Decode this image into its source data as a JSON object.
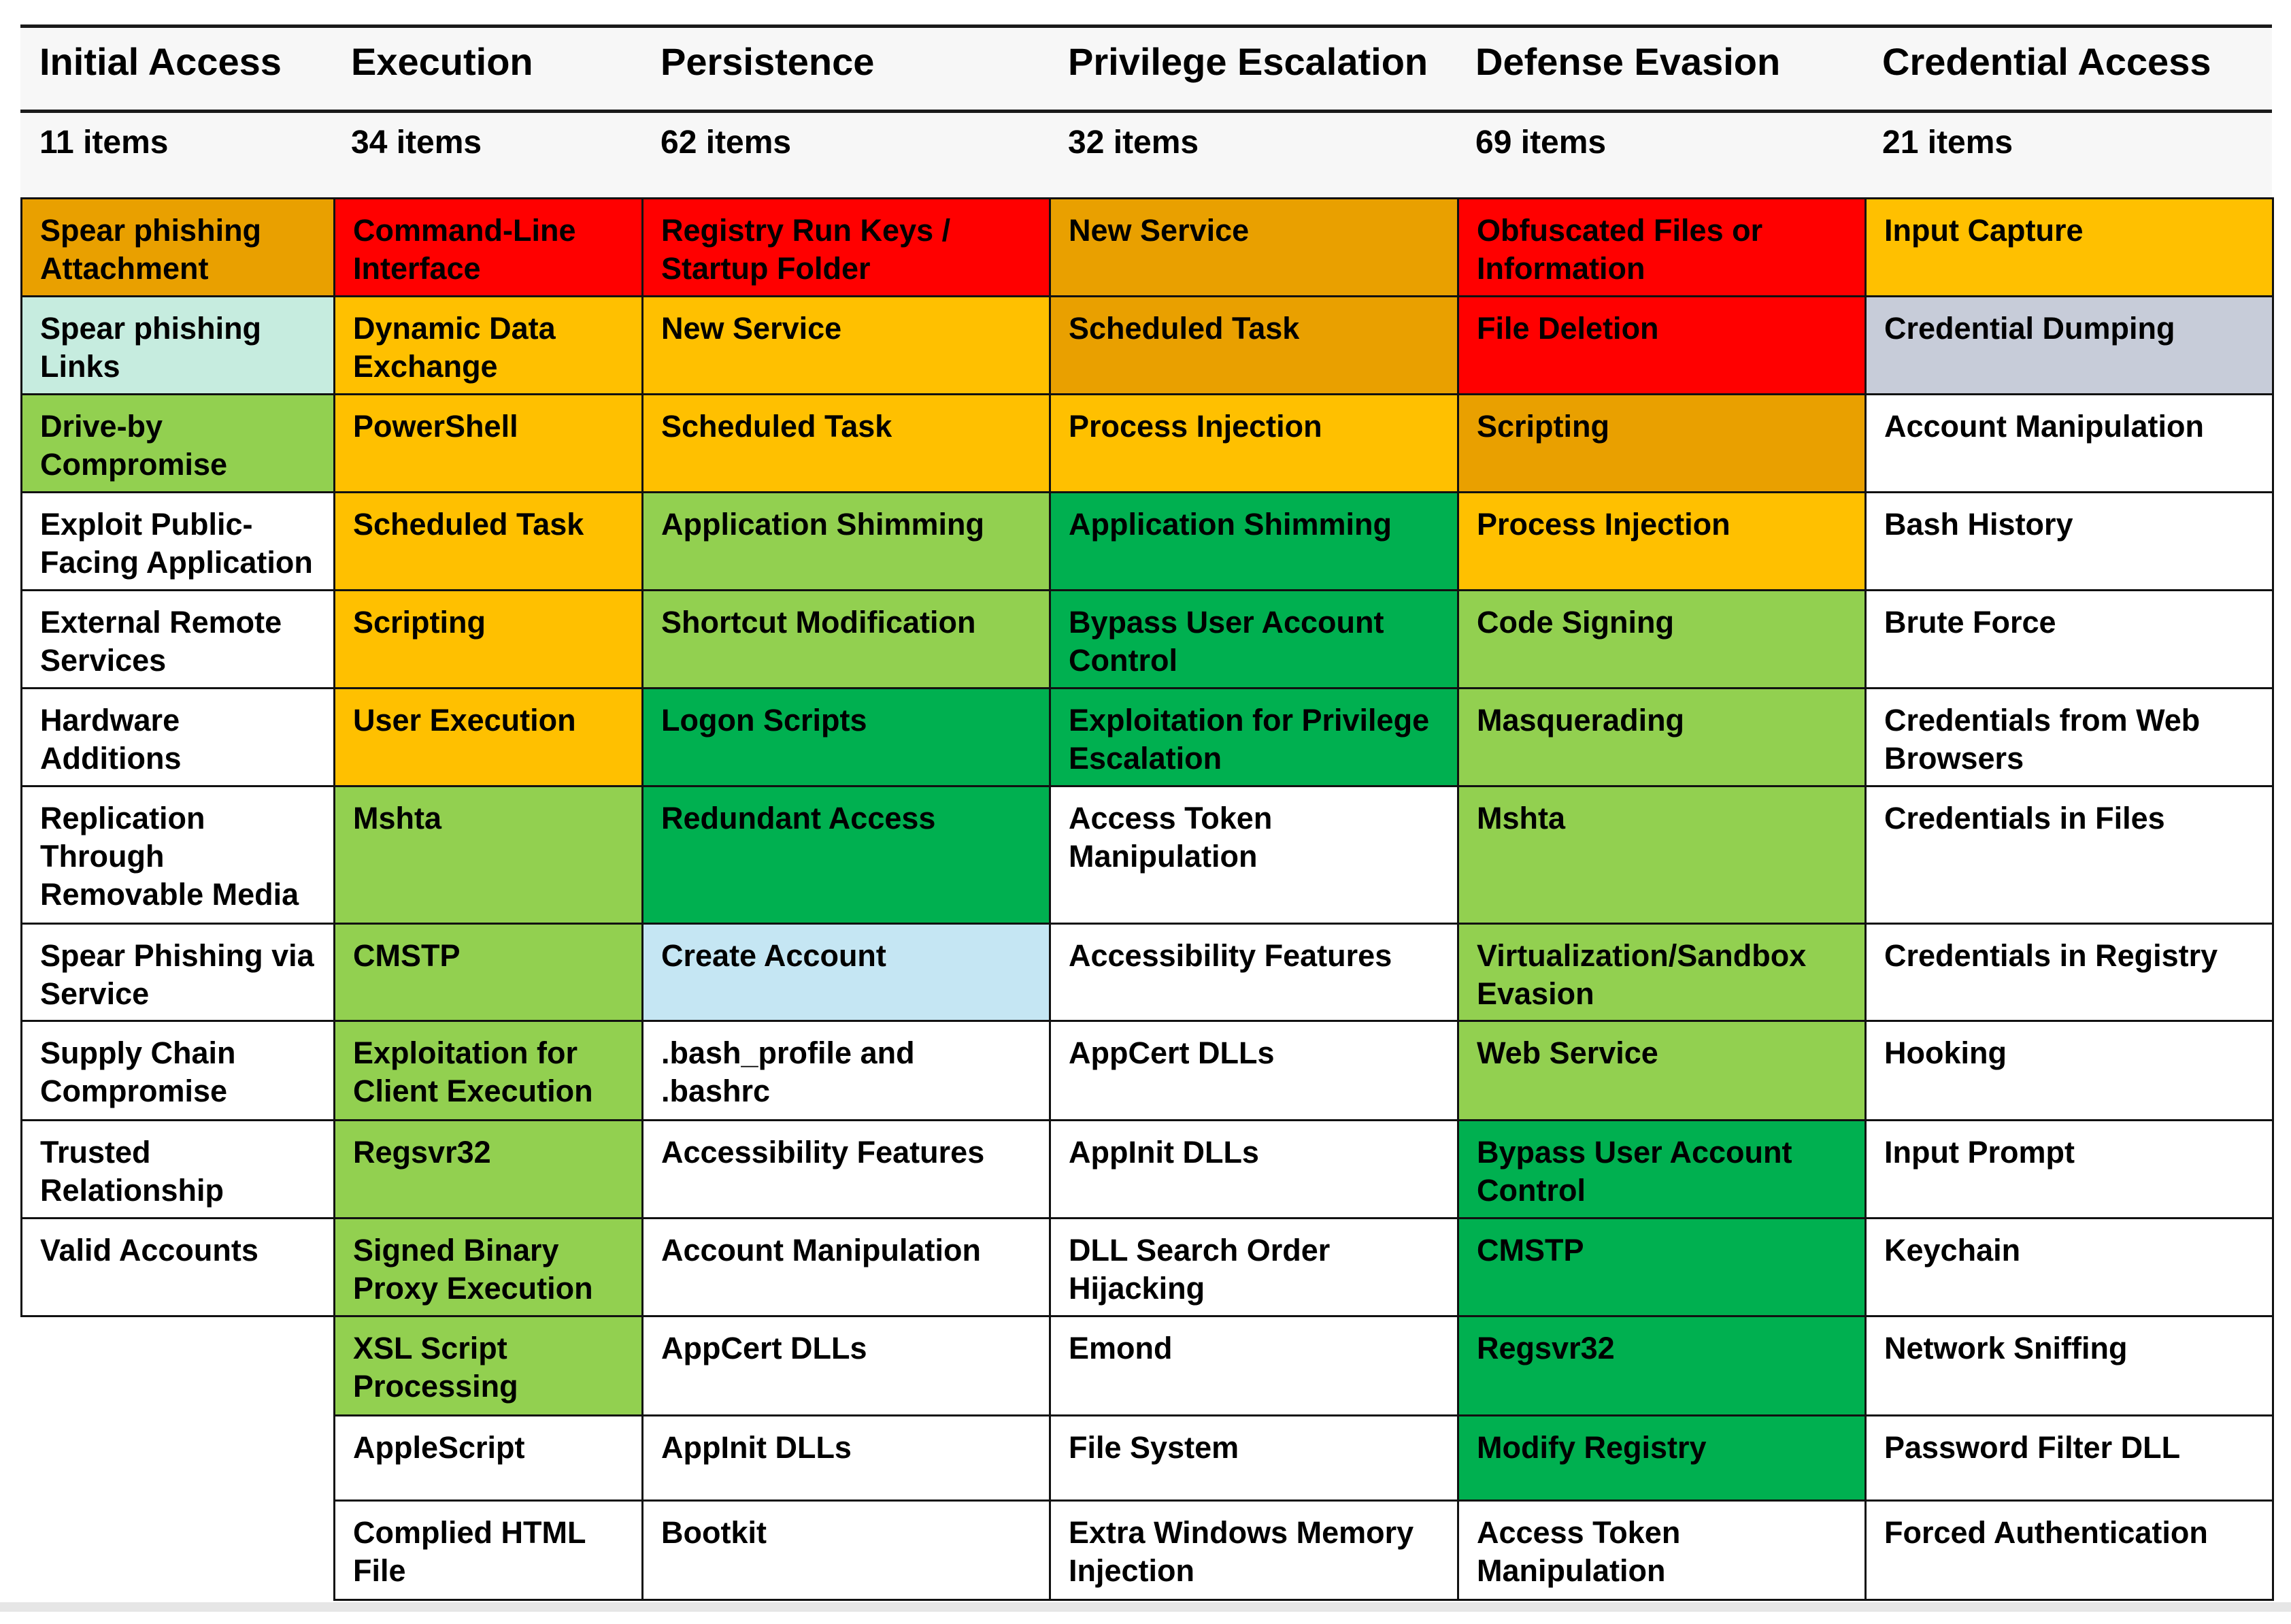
{
  "colors": {
    "red": "#FF0000",
    "dark_orange": "#E9A000",
    "amber": "#FFC000",
    "light_green": "#92D050",
    "green": "#00B050",
    "mint": "#C6ECDF",
    "light_blue": "#C5E6F3",
    "slate": "#C7CCD9",
    "white": "#FFFFFF"
  },
  "columns": [
    {
      "title": "Initial Access",
      "count": "11 items"
    },
    {
      "title": "Execution",
      "count": "34 items"
    },
    {
      "title": "Persistence",
      "count": "62 items"
    },
    {
      "title": "Privilege Escalation",
      "count": "32 items"
    },
    {
      "title": "Defense Evasion",
      "count": "69 items"
    },
    {
      "title": "Credential Access",
      "count": "21 items"
    }
  ],
  "cells": [
    [
      {
        "label": "Spear phishing Attachment",
        "color": "dark_orange"
      },
      {
        "label": "Spear phishing Links",
        "color": "mint"
      },
      {
        "label": "Drive-by Compromise",
        "color": "light_green"
      },
      {
        "label": "Exploit Public-Facing Application",
        "color": "white"
      },
      {
        "label": "External Remote Services",
        "color": "white"
      },
      {
        "label": "Hardware Additions",
        "color": "white"
      },
      {
        "label": "Replication Through Removable Media",
        "color": "white"
      },
      {
        "label": "Spear Phishing via Service",
        "color": "white"
      },
      {
        "label": "Supply Chain Compromise",
        "color": "white"
      },
      {
        "label": "Trusted Relationship",
        "color": "white"
      },
      {
        "label": "Valid Accounts",
        "color": "white"
      }
    ],
    [
      {
        "label": "Command-Line Interface",
        "color": "red"
      },
      {
        "label": "Dynamic Data Exchange",
        "color": "amber"
      },
      {
        "label": "PowerShell",
        "color": "amber"
      },
      {
        "label": "Scheduled Task",
        "color": "amber"
      },
      {
        "label": "Scripting",
        "color": "amber"
      },
      {
        "label": "User Execution",
        "color": "amber"
      },
      {
        "label": "Mshta",
        "color": "light_green"
      },
      {
        "label": "CMSTP",
        "color": "light_green"
      },
      {
        "label": "Exploitation for Client Execution",
        "color": "light_green"
      },
      {
        "label": "Regsvr32",
        "color": "light_green"
      },
      {
        "label": "Signed Binary Proxy Execution",
        "color": "light_green"
      },
      {
        "label": "XSL Script Processing",
        "color": "light_green"
      },
      {
        "label": "AppleScript",
        "color": "white"
      },
      {
        "label": "Complied HTML File",
        "color": "white"
      }
    ],
    [
      {
        "label": "Registry Run Keys / Startup Folder",
        "color": "red"
      },
      {
        "label": "New Service",
        "color": "amber"
      },
      {
        "label": "Scheduled Task",
        "color": "amber"
      },
      {
        "label": "Application Shimming",
        "color": "light_green"
      },
      {
        "label": "Shortcut Modification",
        "color": "light_green"
      },
      {
        "label": "Logon Scripts",
        "color": "green"
      },
      {
        "label": "Redundant Access",
        "color": "green"
      },
      {
        "label": "Create Account",
        "color": "light_blue"
      },
      {
        "label": ".bash_profile and .bashrc",
        "color": "white"
      },
      {
        "label": "Accessibility Features",
        "color": "white"
      },
      {
        "label": "Account Manipulation",
        "color": "white"
      },
      {
        "label": "AppCert DLLs",
        "color": "white"
      },
      {
        "label": "AppInit DLLs",
        "color": "white"
      },
      {
        "label": "Bootkit",
        "color": "white"
      }
    ],
    [
      {
        "label": "New Service",
        "color": "dark_orange"
      },
      {
        "label": "Scheduled Task",
        "color": "dark_orange"
      },
      {
        "label": "Process Injection",
        "color": "amber"
      },
      {
        "label": "Application Shimming",
        "color": "green"
      },
      {
        "label": "Bypass User Account Control",
        "color": "green"
      },
      {
        "label": "Exploitation for Privilege Escalation",
        "color": "green"
      },
      {
        "label": "Access Token Manipulation",
        "color": "white"
      },
      {
        "label": "Accessibility Features",
        "color": "white"
      },
      {
        "label": "AppCert DLLs",
        "color": "white"
      },
      {
        "label": "AppInit DLLs",
        "color": "white"
      },
      {
        "label": "DLL Search Order Hijacking",
        "color": "white"
      },
      {
        "label": "Emond",
        "color": "white"
      },
      {
        "label": "File System",
        "color": "white"
      },
      {
        "label": "Extra Windows Memory Injection",
        "color": "white"
      }
    ],
    [
      {
        "label": "Obfuscated Files or Information",
        "color": "red"
      },
      {
        "label": "File Deletion",
        "color": "red"
      },
      {
        "label": "Scripting",
        "color": "dark_orange"
      },
      {
        "label": "Process Injection",
        "color": "amber"
      },
      {
        "label": "Code Signing",
        "color": "light_green"
      },
      {
        "label": "Masquerading",
        "color": "light_green"
      },
      {
        "label": "Mshta",
        "color": "light_green"
      },
      {
        "label": "Virtualization/Sandbox Evasion",
        "color": "light_green"
      },
      {
        "label": "Web Service",
        "color": "light_green"
      },
      {
        "label": "Bypass User Account Control",
        "color": "green"
      },
      {
        "label": "CMSTP",
        "color": "green"
      },
      {
        "label": "Regsvr32",
        "color": "green"
      },
      {
        "label": "Modify Registry",
        "color": "green"
      },
      {
        "label": "Access Token Manipulation",
        "color": "white"
      }
    ],
    [
      {
        "label": "Input Capture",
        "color": "amber"
      },
      {
        "label": "Credential Dumping",
        "color": "slate"
      },
      {
        "label": "Account Manipulation",
        "color": "white"
      },
      {
        "label": "Bash History",
        "color": "white"
      },
      {
        "label": "Brute Force",
        "color": "white"
      },
      {
        "label": "Credentials from Web Browsers",
        "color": "white"
      },
      {
        "label": "Credentials in Files",
        "color": "white"
      },
      {
        "label": "Credentials in Registry",
        "color": "white"
      },
      {
        "label": "Hooking",
        "color": "white"
      },
      {
        "label": "Input Prompt",
        "color": "white"
      },
      {
        "label": "Keychain",
        "color": "white"
      },
      {
        "label": "Network Sniffing",
        "color": "white"
      },
      {
        "label": "Password Filter DLL",
        "color": "white"
      },
      {
        "label": "Forced Authentication",
        "color": "white"
      }
    ]
  ]
}
